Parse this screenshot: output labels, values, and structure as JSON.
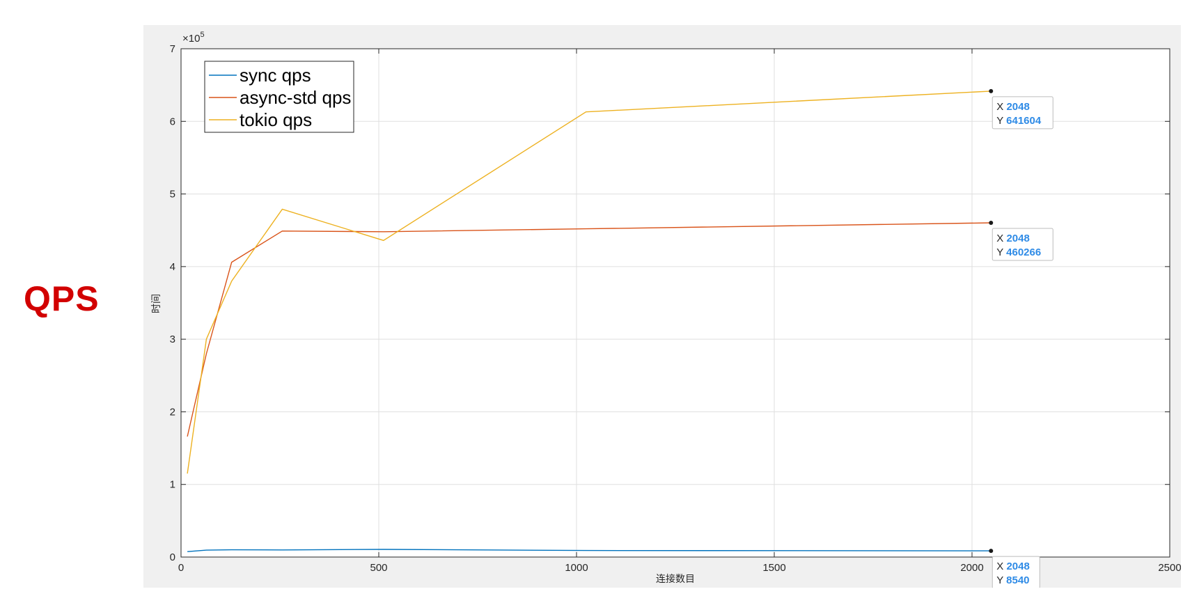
{
  "side_label": "QPS",
  "chart_data": {
    "type": "line",
    "title": "",
    "xlabel": "连接数目",
    "ylabel": "时间",
    "xlim": [
      0,
      2500
    ],
    "ylim": [
      0,
      700000
    ],
    "x_ticks": [
      0,
      500,
      1000,
      1500,
      2000,
      2500
    ],
    "y_ticks": [
      0,
      1,
      2,
      3,
      4,
      5,
      6,
      7
    ],
    "y_exponent_label": "×10",
    "y_exponent_power": "5",
    "grid": true,
    "legend_position": "top-left",
    "series": [
      {
        "name": "sync qps",
        "color": "#0072BD",
        "x": [
          16,
          64,
          128,
          256,
          512,
          1024,
          2048
        ],
        "y": [
          7500,
          9500,
          10000,
          9800,
          10500,
          9000,
          8540
        ]
      },
      {
        "name": "async-std qps",
        "color": "#D95319",
        "x": [
          16,
          64,
          128,
          256,
          512,
          1024,
          2048
        ],
        "y": [
          166000,
          280000,
          406000,
          449000,
          448000,
          452000,
          460266
        ]
      },
      {
        "name": "tokio qps",
        "color": "#EDB120",
        "x": [
          16,
          64,
          128,
          256,
          512,
          1024,
          2048
        ],
        "y": [
          115000,
          300000,
          380000,
          479000,
          436000,
          613000,
          641604
        ]
      }
    ],
    "datatips": [
      {
        "series": "tokio qps",
        "x_label": "X",
        "y_label": "Y",
        "x": 2048,
        "y": 641604,
        "x_text": "2048",
        "y_text": "641604"
      },
      {
        "series": "async-std qps",
        "x_label": "X",
        "y_label": "Y",
        "x": 2048,
        "y": 460266,
        "x_text": "2048",
        "y_text": "460266"
      },
      {
        "series": "sync qps",
        "x_label": "X",
        "y_label": "Y",
        "x": 2048,
        "y": 8540,
        "x_text": "2048",
        "y_text": "8540"
      }
    ]
  }
}
